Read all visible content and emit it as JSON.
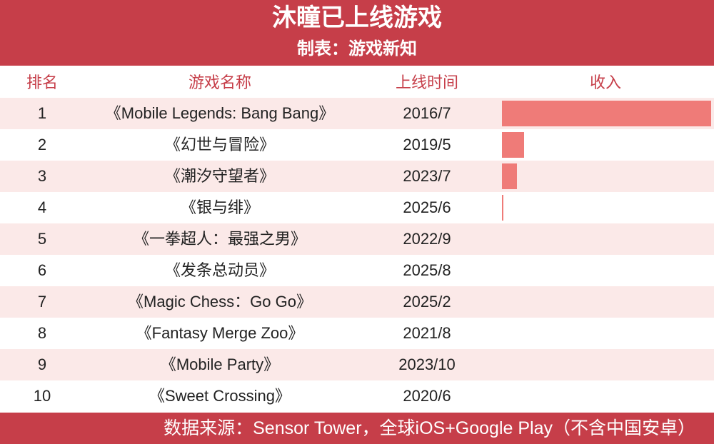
{
  "header": {
    "title": "沐瞳已上线游戏",
    "subtitle": "制表：游戏新知"
  },
  "columns": {
    "rank": "排名",
    "name": "游戏名称",
    "date": "上线时间",
    "revenue": "收入"
  },
  "colors": {
    "header_bg": "#c63e49",
    "bar": "#ef7b78",
    "row_alt": "#fbe9e8"
  },
  "chart_data": {
    "type": "table",
    "title": "沐瞳已上线游戏",
    "subtitle": "制表：游戏新知",
    "revenue_scale_max": 100,
    "rows": [
      {
        "rank": "1",
        "name": "《Mobile Legends: Bang Bang》",
        "date": "2016/7",
        "revenue": 100
      },
      {
        "rank": "2",
        "name": "《幻世与冒险》",
        "date": "2019/5",
        "revenue": 10.5
      },
      {
        "rank": "3",
        "name": "《潮汐守望者》",
        "date": "2023/7",
        "revenue": 7
      },
      {
        "rank": "4",
        "name": "《银与绯》",
        "date": "2025/6",
        "revenue": 0.6
      },
      {
        "rank": "5",
        "name": "《一拳超人：最强之男》",
        "date": "2022/9",
        "revenue": 0
      },
      {
        "rank": "6",
        "name": "《发条总动员》",
        "date": "2025/8",
        "revenue": 0
      },
      {
        "rank": "7",
        "name": "《Magic Chess：Go Go》",
        "date": "2025/2",
        "revenue": 0
      },
      {
        "rank": "8",
        "name": "《Fantasy Merge Zoo》",
        "date": "2021/8",
        "revenue": 0
      },
      {
        "rank": "9",
        "name": "《Mobile Party》",
        "date": "2023/10",
        "revenue": 0
      },
      {
        "rank": "10",
        "name": "《Sweet Crossing》",
        "date": "2020/6",
        "revenue": 0
      }
    ]
  },
  "footer": {
    "source": "数据来源：Sensor Tower，全球iOS+Google Play（不含中国安卓）"
  }
}
